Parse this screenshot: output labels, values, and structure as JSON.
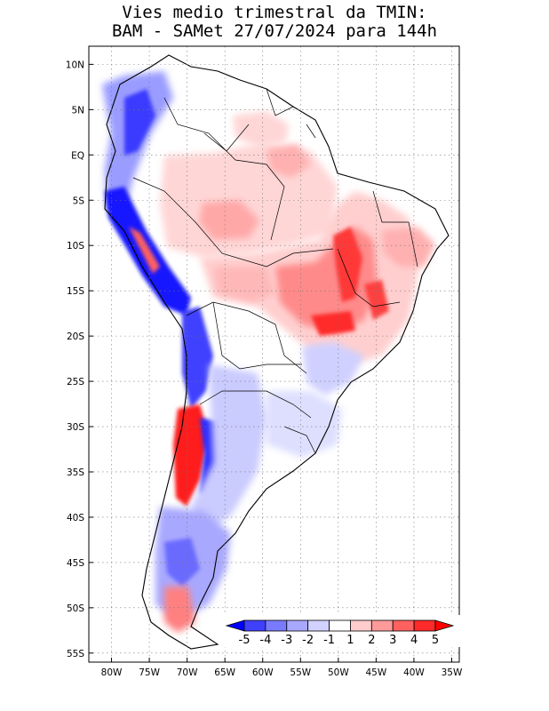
{
  "title": {
    "line1": "Vies medio trimestral da TMIN:",
    "line2": "BAM - SAMet 27/07/2024  para 144h"
  },
  "map": {
    "region": "South America",
    "lon_range": [
      -83,
      -34
    ],
    "lat_range": [
      -56,
      12
    ],
    "lat_ticks": [
      {
        "value": 10,
        "label": "10N"
      },
      {
        "value": 5,
        "label": "5N"
      },
      {
        "value": 0,
        "label": "EQ"
      },
      {
        "value": -5,
        "label": "5S"
      },
      {
        "value": -10,
        "label": "10S"
      },
      {
        "value": -15,
        "label": "15S"
      },
      {
        "value": -20,
        "label": "20S"
      },
      {
        "value": -25,
        "label": "25S"
      },
      {
        "value": -30,
        "label": "30S"
      },
      {
        "value": -35,
        "label": "35S"
      },
      {
        "value": -40,
        "label": "40S"
      },
      {
        "value": -45,
        "label": "45S"
      },
      {
        "value": -50,
        "label": "50S"
      },
      {
        "value": -55,
        "label": "55S"
      }
    ],
    "lon_ticks": [
      {
        "value": -80,
        "label": "80W"
      },
      {
        "value": -75,
        "label": "75W"
      },
      {
        "value": -70,
        "label": "70W"
      },
      {
        "value": -65,
        "label": "65W"
      },
      {
        "value": -60,
        "label": "60W"
      },
      {
        "value": -55,
        "label": "55W"
      },
      {
        "value": -50,
        "label": "50W"
      },
      {
        "value": -45,
        "label": "45W"
      },
      {
        "value": -40,
        "label": "40W"
      },
      {
        "value": -35,
        "label": "35W"
      }
    ],
    "grid": "dotted"
  },
  "colorbar": {
    "levels": [
      "-5",
      "-4",
      "-3",
      "-2",
      "-1",
      "1",
      "2",
      "3",
      "4",
      "5"
    ],
    "colors": [
      "#0000ff",
      "#4040ff",
      "#7a7aff",
      "#a8a8ff",
      "#d2d2ff",
      "#ffffff",
      "#ffcccc",
      "#ff9a9a",
      "#ff6060",
      "#ff2a2a",
      "#ff0000"
    ]
  },
  "colors": {
    "strong_cold": "#0000ff",
    "cold": "#7a7aff",
    "weak_cold": "#d2d2ff",
    "weak_warm": "#ffcccc",
    "warm": "#ff7a7a",
    "strong_warm": "#ff0000"
  }
}
